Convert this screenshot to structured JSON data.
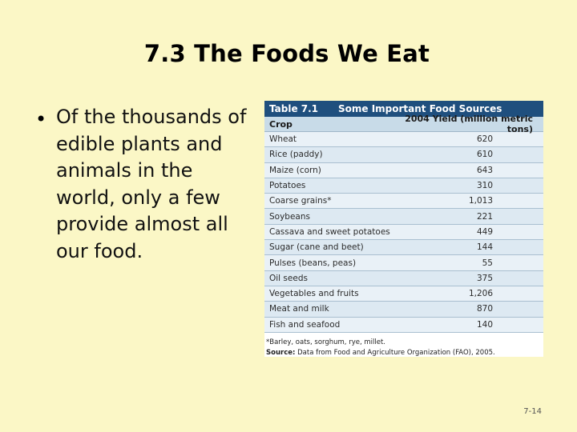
{
  "slide": {
    "title": "7.3 The Foods We Eat",
    "bullet": "Of the thousands of edible plants and animals in the world, only a few provide almost all our food.",
    "slide_number": "7-14"
  },
  "table": {
    "number": "Table 7.1",
    "title": "Some Important Food Sources",
    "col1": "Crop",
    "col2": "2004 Yield (million metric tons)",
    "rows": [
      {
        "crop": "Wheat",
        "yield": "620"
      },
      {
        "crop": "Rice (paddy)",
        "yield": "610"
      },
      {
        "crop": "Maize (corn)",
        "yield": "643"
      },
      {
        "crop": "Potatoes",
        "yield": "310"
      },
      {
        "crop": "Coarse grains*",
        "yield": "1,013"
      },
      {
        "crop": "Soybeans",
        "yield": "221"
      },
      {
        "crop": "Cassava and sweet potatoes",
        "yield": "449"
      },
      {
        "crop": "Sugar (cane and beet)",
        "yield": "144"
      },
      {
        "crop": "Pulses (beans, peas)",
        "yield": "55"
      },
      {
        "crop": "Oil seeds",
        "yield": "375"
      },
      {
        "crop": "Vegetables and fruits",
        "yield": "1,206"
      },
      {
        "crop": "Meat and milk",
        "yield": "870"
      },
      {
        "crop": "Fish and seafood",
        "yield": "140"
      }
    ],
    "footnote": "*Barley, oats, sorghum, rye, millet.",
    "source_label": "Source:",
    "source_text": "Data from Food and Agriculture Organization (FAO), 2005."
  }
}
